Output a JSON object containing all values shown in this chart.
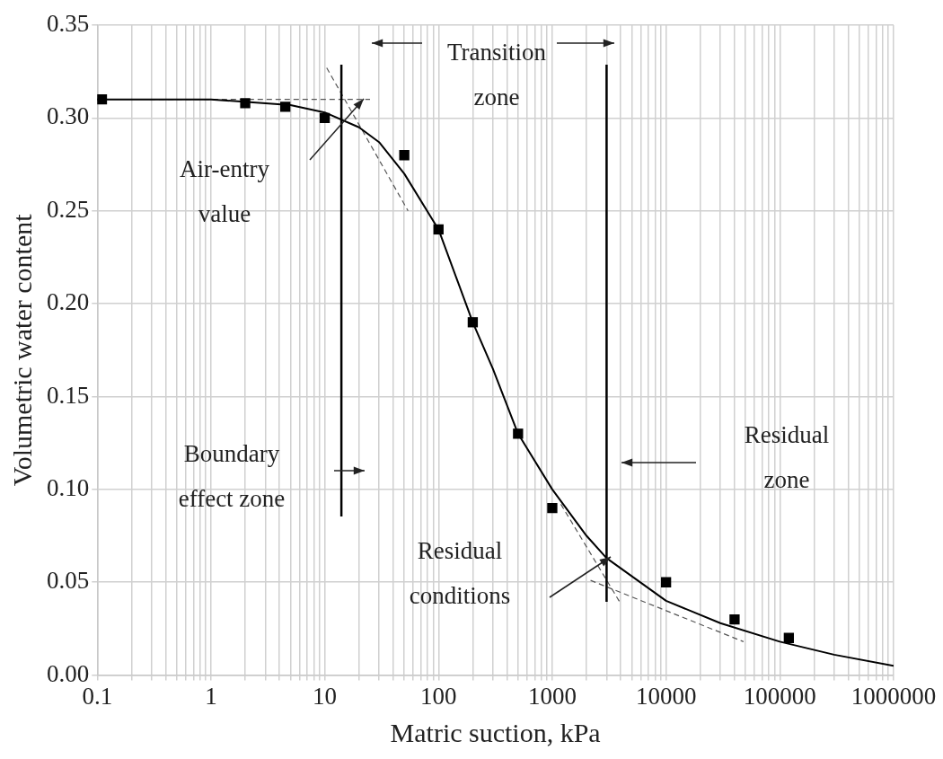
{
  "chart_data": {
    "type": "scatter",
    "xlabel": "Matric suction, kPa",
    "ylabel": "Volumetric water content",
    "log": "x",
    "grid": true,
    "legend": false,
    "marker": "square",
    "xlim": [
      0.1,
      1000000
    ],
    "ylim": [
      0,
      0.35
    ],
    "xticks": [
      0.1,
      {
        "value": 0.2,
        "label": null
      },
      {
        "value": 0.3,
        "label": null
      },
      {
        "value": 0.4,
        "label": null
      },
      {
        "value": 0.5,
        "label": null
      },
      {
        "value": 0.6,
        "label": null
      },
      {
        "value": 0.7,
        "label": null
      },
      {
        "value": 0.8,
        "label": null
      },
      {
        "value": 0.9,
        "label": null
      },
      1,
      {
        "value": 2,
        "label": null
      },
      {
        "value": 3,
        "label": null
      },
      {
        "value": 4,
        "label": null
      },
      {
        "value": 5,
        "label": null
      },
      {
        "value": 6,
        "label": null
      },
      {
        "value": 7,
        "label": null
      },
      {
        "value": 8,
        "label": null
      },
      {
        "value": 9,
        "label": null
      },
      10,
      {
        "value": 20,
        "label": null
      },
      {
        "value": 30,
        "label": null
      },
      {
        "value": 40,
        "label": null
      },
      {
        "value": 50,
        "label": null
      },
      {
        "value": 60,
        "label": null
      },
      {
        "value": 70,
        "label": null
      },
      {
        "value": 80,
        "label": null
      },
      {
        "value": 90,
        "label": null
      },
      100,
      {
        "value": 200,
        "label": null
      },
      {
        "value": 300,
        "label": null
      },
      {
        "value": 400,
        "label": null
      },
      {
        "value": 500,
        "label": null
      },
      {
        "value": 600,
        "label": null
      },
      {
        "value": 700,
        "label": null
      },
      {
        "value": 800,
        "label": null
      },
      {
        "value": 900,
        "label": null
      },
      1000,
      {
        "value": 2000,
        "label": null
      },
      {
        "value": 3000,
        "label": null
      },
      {
        "value": 4000,
        "label": null
      },
      {
        "value": 5000,
        "label": null
      },
      {
        "value": 6000,
        "label": null
      },
      {
        "value": 7000,
        "label": null
      },
      {
        "value": 8000,
        "label": null
      },
      {
        "value": 9000,
        "label": null
      },
      10000,
      {
        "value": 20000,
        "label": null
      },
      {
        "value": 30000,
        "label": null
      },
      {
        "value": 40000,
        "label": null
      },
      {
        "value": 50000,
        "label": null
      },
      {
        "value": 60000,
        "label": null
      },
      {
        "value": 70000,
        "label": null
      },
      {
        "value": 80000,
        "label": null
      },
      {
        "value": 90000,
        "label": null
      },
      100000,
      {
        "value": 200000,
        "label": null
      },
      {
        "value": 300000,
        "label": null
      },
      {
        "value": 400000,
        "label": null
      },
      {
        "value": 500000,
        "label": null
      },
      {
        "value": 600000,
        "label": null
      },
      {
        "value": 700000,
        "label": null
      },
      {
        "value": 800000,
        "label": null
      },
      {
        "value": 900000,
        "label": null
      },
      1000000
    ],
    "yticks": [
      {
        "value": 0,
        "label": "0.00"
      },
      {
        "value": 0.05,
        "label": "0.05"
      },
      {
        "value": 0.1,
        "label": "0.10"
      },
      {
        "value": 0.15,
        "label": "0.15"
      },
      {
        "value": 0.2,
        "label": "0.20"
      },
      {
        "value": 0.25,
        "label": "0.25"
      },
      {
        "value": 0.3,
        "label": "0.30"
      },
      {
        "value": 0.35,
        "label": "0.35"
      }
    ],
    "series": [
      {
        "color": "#000000",
        "x": [
          0.11,
          2,
          4.5,
          10,
          50,
          100,
          200,
          500,
          1000,
          10000,
          40000,
          120000
        ],
        "values": [
          0.31,
          0.308,
          0.306,
          0.3,
          0.28,
          0.24,
          0.19,
          0.13,
          0.09,
          0.05,
          0.03,
          0.02
        ]
      },
      {
        "type": "line",
        "color": "#000000",
        "marker": "none",
        "x": [
          0.1,
          1,
          5,
          10,
          20,
          30,
          50,
          100,
          200,
          300,
          500,
          1000,
          2000,
          3000,
          10000,
          30000,
          100000,
          300000,
          1000000
        ],
        "values": [
          0.31,
          0.31,
          0.307,
          0.303,
          0.295,
          0.287,
          0.27,
          0.24,
          0.19,
          0.165,
          0.13,
          0.1,
          0.075,
          0.063,
          0.04,
          0.028,
          0.018,
          0.011,
          0.005
        ]
      },
      {
        "type": "line",
        "color": "#555555",
        "marker": "none",
        "line_style": "dashed",
        "x": [
          0.29,
          25
        ],
        "values": [
          0.31,
          0.31
        ]
      },
      {
        "type": "line",
        "color": "#555555",
        "marker": "none",
        "line_style": "dashed",
        "x": [
          10.4,
          54
        ],
        "values": [
          0.327,
          0.25
        ]
      },
      {
        "type": "line",
        "color": "#555555",
        "marker": "none",
        "line_style": "dashed",
        "x": [
          1190,
          3950
        ],
        "values": [
          0.092,
          0.039
        ]
      },
      {
        "type": "line",
        "color": "#555555",
        "marker": "none",
        "line_style": "dashed",
        "x": [
          2170,
          48000
        ],
        "values": [
          0.051,
          0.018
        ]
      }
    ],
    "ref_lines": [
      {
        "axis": "x",
        "value": 14,
        "color": "#000000"
      },
      {
        "axis": "x",
        "value": 3000,
        "color": "#000000"
      }
    ],
    "annotations": [
      "Transition zone",
      "Air-entry value",
      "Boundary effect zone",
      "Residual zone",
      "Residual conditions"
    ]
  }
}
